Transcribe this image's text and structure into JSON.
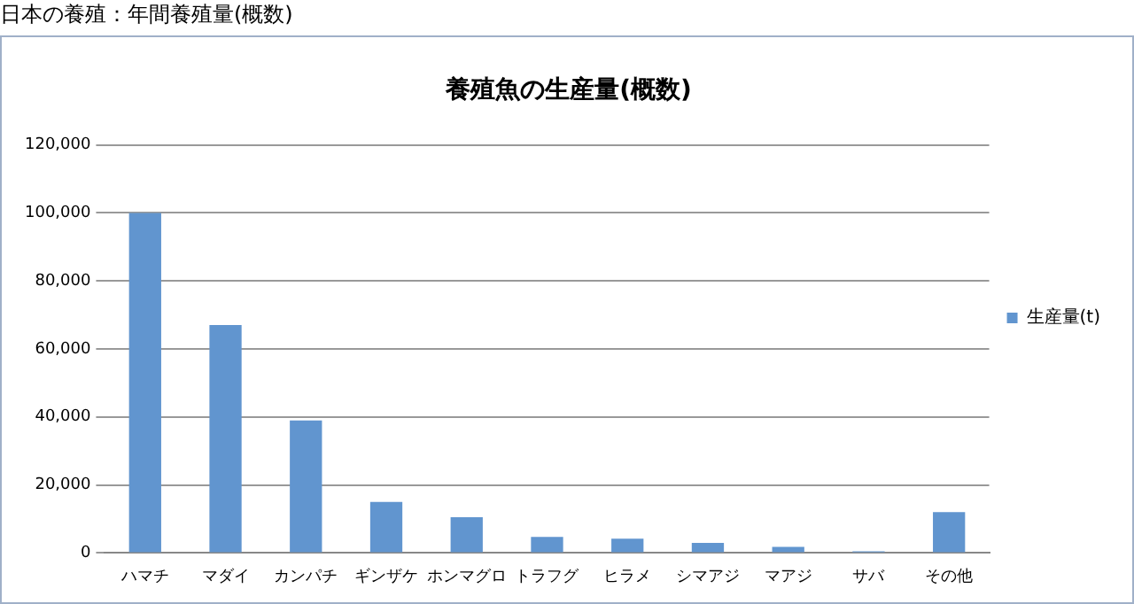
{
  "chart_data": {
    "type": "bar",
    "title": "日本の養殖：年間養殖量(概数)",
    "subtitle": "養殖魚の生産量(概数)",
    "categories": [
      "ハマチ",
      "マダイ",
      "カンパチ",
      "ギンザケ",
      "ホンマグロ",
      "トラフグ",
      "ヒラメ",
      "シマアジ",
      "マアジ",
      "サバ",
      "その他"
    ],
    "series": [
      {
        "name": "生産量(t)",
        "color": "#6195cf",
        "values": [
          100000,
          67000,
          39000,
          15000,
          10500,
          4700,
          4200,
          3000,
          1800,
          500,
          12000
        ]
      }
    ],
    "ylim": [
      0,
      120000
    ],
    "yticks": [
      0,
      {
        "value": 20000,
        "label": "20,000"
      },
      {
        "value": 40000,
        "label": "40,000"
      },
      {
        "value": 60000,
        "label": "60,000"
      },
      {
        "value": 80000,
        "label": "80,000"
      },
      {
        "value": 100000,
        "label": "100,000"
      },
      {
        "value": 120000,
        "label": "120,000"
      }
    ],
    "grid": "y",
    "legend": "right"
  }
}
